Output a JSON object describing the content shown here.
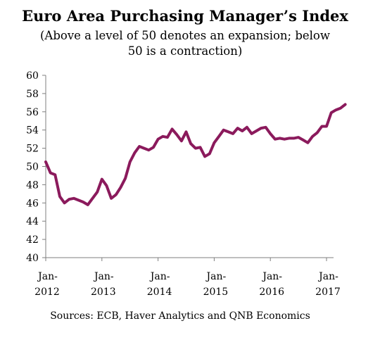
{
  "chart_data": {
    "type": "line",
    "title": "Euro Area Purchasing Manager’s Index",
    "subtitle_lines": [
      "(Above a level of 50 denotes an expansion; below",
      "50 is a contraction)"
    ],
    "source": "Sources: ECB, Haver Analytics and QNB Economics",
    "xlabel": "",
    "ylabel": "",
    "ylim": [
      40,
      60
    ],
    "y_ticks": [
      "60",
      "58",
      "56",
      "54",
      "52",
      "50",
      "48",
      "46",
      "44",
      "42",
      "40"
    ],
    "x_ticks": [
      {
        "line1": "Jan-",
        "line2": "2012",
        "at": "2012-01"
      },
      {
        "line1": "Jan-",
        "line2": "2013",
        "at": "2013-01"
      },
      {
        "line1": "Jan-",
        "line2": "2014",
        "at": "2014-01"
      },
      {
        "line1": "Jan-",
        "line2": "2015",
        "at": "2015-01"
      },
      {
        "line1": "Jan-",
        "line2": "2016",
        "at": "2016-01"
      },
      {
        "line1": "Jan-",
        "line2": "2017",
        "at": "2017-01"
      }
    ],
    "grid": false,
    "line_color": "#8b1a5c",
    "axis_color": "#7f7f7f",
    "series": [
      {
        "x": [
          "2012-01",
          "2012-02",
          "2012-03",
          "2012-04",
          "2012-05",
          "2012-06",
          "2012-07",
          "2012-08",
          "2012-09",
          "2012-10",
          "2012-11",
          "2012-12",
          "2013-01",
          "2013-02",
          "2013-03",
          "2013-04",
          "2013-05",
          "2013-06",
          "2013-07",
          "2013-08",
          "2013-09",
          "2013-10",
          "2013-11",
          "2013-12",
          "2014-01",
          "2014-02",
          "2014-03",
          "2014-04",
          "2014-05",
          "2014-06",
          "2014-07",
          "2014-08",
          "2014-09",
          "2014-10",
          "2014-11",
          "2014-12",
          "2015-01",
          "2015-02",
          "2015-03",
          "2015-04",
          "2015-05",
          "2015-06",
          "2015-07",
          "2015-08",
          "2015-09",
          "2015-10",
          "2015-11",
          "2015-12",
          "2016-01",
          "2016-02",
          "2016-03",
          "2016-04",
          "2016-05",
          "2016-06",
          "2016-07",
          "2016-08",
          "2016-09",
          "2016-10",
          "2016-11",
          "2016-12",
          "2017-01",
          "2017-02",
          "2017-03",
          "2017-04",
          "2017-05"
        ],
        "values": [
          50.5,
          49.3,
          49.1,
          46.7,
          46.0,
          46.4,
          46.5,
          46.3,
          46.1,
          45.8,
          46.5,
          47.2,
          48.6,
          47.9,
          46.5,
          46.9,
          47.7,
          48.7,
          50.5,
          51.5,
          52.2,
          52.0,
          51.8,
          52.1,
          53.0,
          53.3,
          53.2,
          54.1,
          53.5,
          52.8,
          53.8,
          52.5,
          52.0,
          52.1,
          51.1,
          51.4,
          52.6,
          53.3,
          54.0,
          53.8,
          53.6,
          54.2,
          53.9,
          54.3,
          53.6,
          53.9,
          54.2,
          54.3,
          53.6,
          53.0,
          53.1,
          53.0,
          53.1,
          53.1,
          53.2,
          52.9,
          52.6,
          53.3,
          53.7,
          54.4,
          54.4,
          55.9,
          56.2,
          56.4,
          56.8
        ]
      }
    ]
  }
}
